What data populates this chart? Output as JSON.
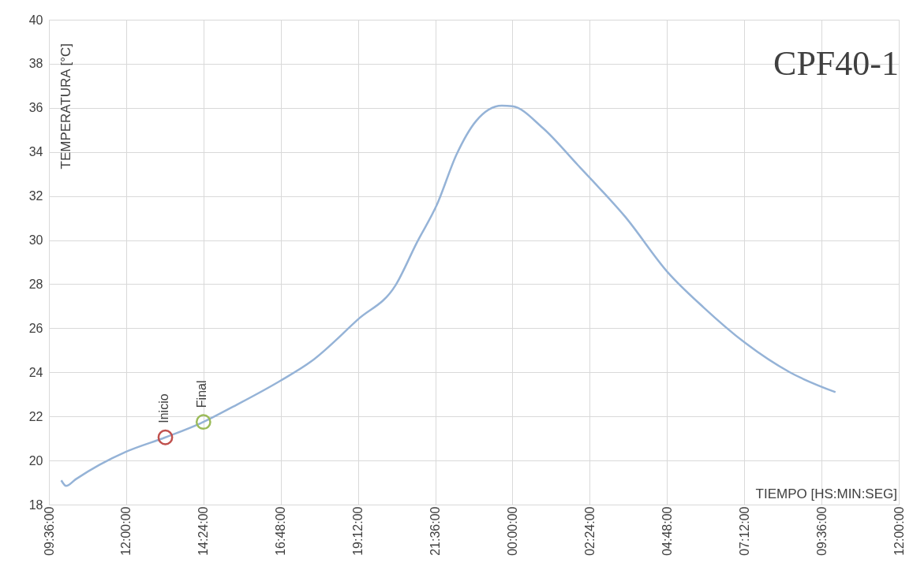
{
  "chart_data": {
    "type": "line",
    "title": "CPF40-1",
    "xlabel": "TIEMPO [HS:MIN:SEG]",
    "ylabel": "TEMPERATURA [°C]",
    "xlim": [
      "2000-01-01T09:36",
      "2000-01-02T12:00"
    ],
    "ylim": [
      18,
      40
    ],
    "xticks": [
      {
        "value": "2000-01-01T09:36",
        "label": "09:36:00"
      },
      {
        "value": "2000-01-01T12:00",
        "label": "12:00:00"
      },
      {
        "value": "2000-01-01T14:24",
        "label": "14:24:00"
      },
      {
        "value": "2000-01-01T16:48",
        "label": "16:48:00"
      },
      {
        "value": "2000-01-01T19:12",
        "label": "19:12:00"
      },
      {
        "value": "2000-01-01T21:36",
        "label": "21:36:00"
      },
      {
        "value": "2000-01-02T00:00",
        "label": "00:00:00"
      },
      {
        "value": "2000-01-02T02:24",
        "label": "02:24:00"
      },
      {
        "value": "2000-01-02T04:48",
        "label": "04:48:00"
      },
      {
        "value": "2000-01-02T07:12",
        "label": "07:12:00"
      },
      {
        "value": "2000-01-02T09:36",
        "label": "09:36:00"
      },
      {
        "value": "2000-01-02T12:00",
        "label": "12:00:00"
      }
    ],
    "yticks": [
      18,
      20,
      22,
      24,
      26,
      28,
      30,
      32,
      34,
      36,
      38,
      40
    ],
    "grid": true,
    "legend": false,
    "series": [
      {
        "color": "#95b3d7",
        "marker": "none",
        "x": [
          "2000-01-01T09:59",
          "2000-01-01T10:08",
          "2000-01-01T10:26",
          "2000-01-01T11:10",
          "2000-01-01T12:00",
          "2000-01-01T13:13",
          "2000-01-01T14:24",
          "2000-01-01T15:19",
          "2000-01-01T16:46",
          "2000-01-01T17:45",
          "2000-01-01T19:12",
          "2000-01-01T20:22",
          "2000-01-01T21:02",
          "2000-01-01T21:39",
          "2000-01-01T22:16",
          "2000-01-01T22:52",
          "2000-01-01T23:40",
          "2000-01-02T00:00",
          "2000-01-02T00:56",
          "2000-01-02T02:02",
          "2000-01-02T02:27",
          "2000-01-02T03:30",
          "2000-01-02T04:49",
          "2000-01-02T05:56",
          "2000-01-02T07:14",
          "2000-01-02T08:37",
          "2000-01-02T10:02"
        ],
        "values": [
          19.1,
          18.85,
          19.15,
          19.8,
          20.4,
          21.05,
          21.75,
          22.44,
          23.6,
          24.5,
          26.4,
          27.95,
          29.9,
          31.6,
          33.9,
          35.4,
          36.1,
          36.07,
          35.1,
          33.4,
          32.75,
          31.06,
          28.55,
          26.95,
          25.33,
          24.0,
          23.1
        ]
      },
      {
        "type": "scatter",
        "name": "Inicio",
        "color": "#c0504d",
        "marker": "circle",
        "x": [
          "2000-01-01T13:13"
        ],
        "values": [
          21.05
        ]
      },
      {
        "type": "scatter",
        "name": "Final",
        "color": "#9bbb59",
        "marker": "circle",
        "x": [
          "2000-01-01T14:24"
        ],
        "values": [
          21.75
        ]
      }
    ]
  }
}
